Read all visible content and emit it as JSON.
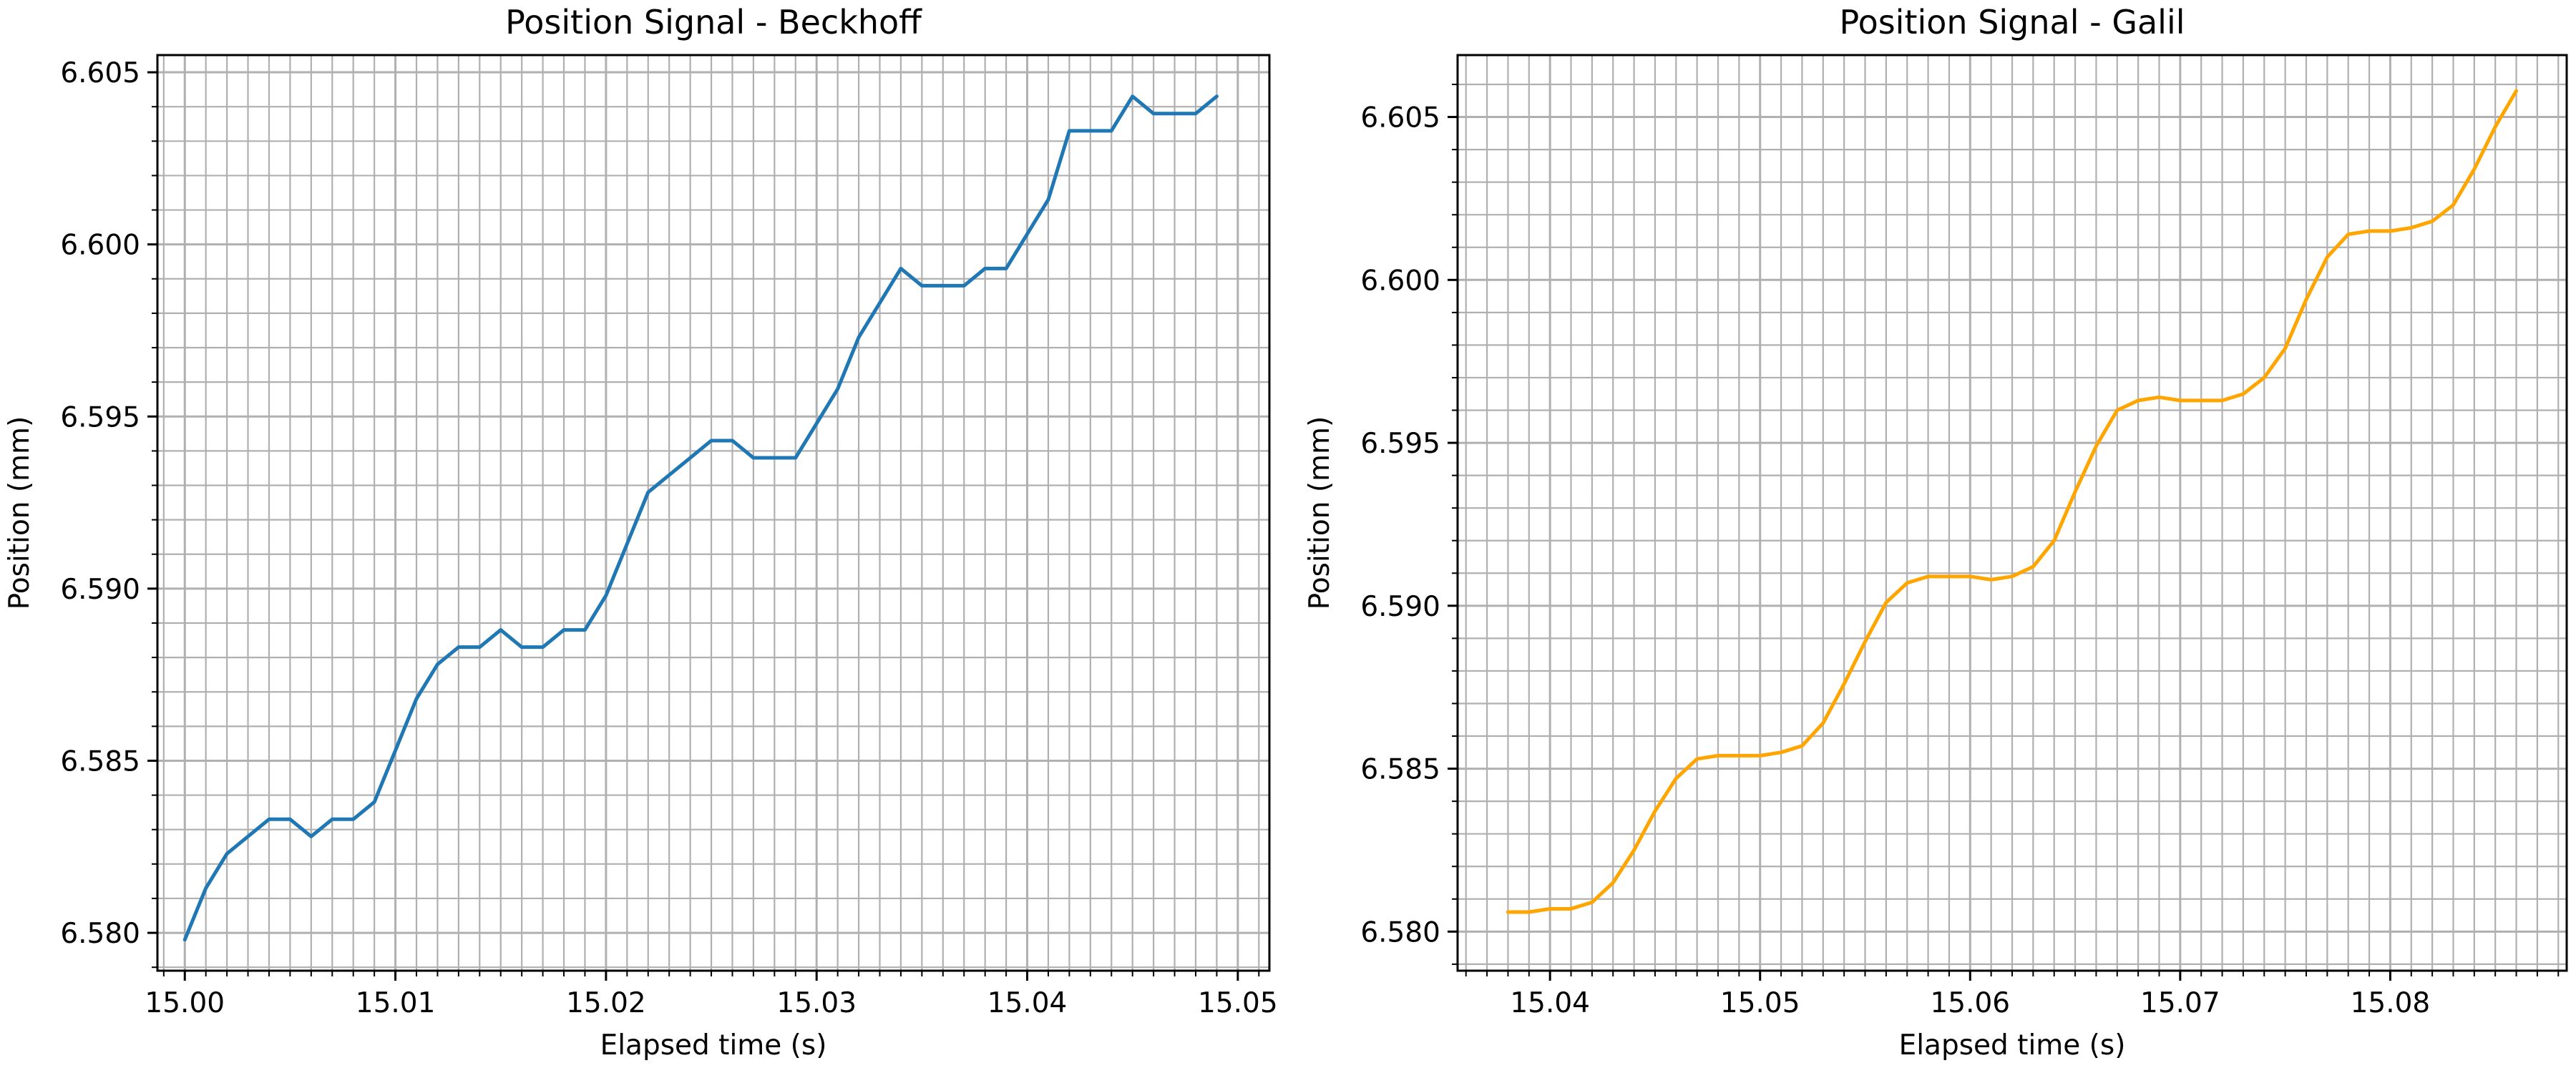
{
  "chart_data": [
    {
      "type": "line",
      "title": "Position Signal - Beckhoff",
      "xlabel": "Elapsed time (s)",
      "ylabel": "Position (mm)",
      "xlim": [
        14.9987,
        15.0515
      ],
      "ylim": [
        6.5789,
        6.6055
      ],
      "xticks": [
        "15.00",
        "15.01",
        "15.02",
        "15.03",
        "15.04",
        "15.05"
      ],
      "yticks": [
        "6.580",
        "6.585",
        "6.590",
        "6.595",
        "6.600",
        "6.605"
      ],
      "grid": true,
      "minor_grid": true,
      "color": "#1f77b4",
      "series": [
        {
          "x": [
            15.0,
            15.001,
            15.002,
            15.003,
            15.004,
            15.005,
            15.006,
            15.007,
            15.008,
            15.009,
            15.01,
            15.011,
            15.012,
            15.013,
            15.014,
            15.015,
            15.016,
            15.017,
            15.018,
            15.019,
            15.02,
            15.021,
            15.022,
            15.023,
            15.024,
            15.025,
            15.026,
            15.027,
            15.028,
            15.029,
            15.03,
            15.031,
            15.032,
            15.033,
            15.034,
            15.035,
            15.036,
            15.037,
            15.038,
            15.039,
            15.04,
            15.041,
            15.042,
            15.043,
            15.044,
            15.045,
            15.046,
            15.047,
            15.048,
            15.049
          ],
          "y": [
            6.5798,
            6.5813,
            6.5823,
            6.5828,
            6.5833,
            6.5833,
            6.5828,
            6.5833,
            6.5833,
            6.5838,
            6.5853,
            6.5868,
            6.5878,
            6.5883,
            6.5883,
            6.5888,
            6.5883,
            6.5883,
            6.5888,
            6.5888,
            6.5898,
            6.5913,
            6.5928,
            6.5933,
            6.5938,
            6.5943,
            6.5943,
            6.5938,
            6.5938,
            6.5938,
            6.5948,
            6.5958,
            6.5973,
            6.5983,
            6.5993,
            6.5988,
            6.5988,
            6.5988,
            6.5993,
            6.5993,
            6.6003,
            6.6013,
            6.6033,
            6.6033,
            6.6033,
            6.6043,
            6.6038,
            6.6038,
            6.6038,
            6.6043
          ]
        }
      ]
    },
    {
      "type": "line",
      "title": "Position Signal - Galil",
      "xlabel": "Elapsed time (s)",
      "ylabel": "Position (mm)",
      "xlim": [
        15.0356,
        15.0884
      ],
      "ylim": [
        6.5788,
        6.6069
      ],
      "xticks": [
        "15.04",
        "15.05",
        "15.06",
        "15.07",
        "15.08"
      ],
      "yticks": [
        "6.580",
        "6.585",
        "6.590",
        "6.595",
        "6.600",
        "6.605"
      ],
      "grid": true,
      "minor_grid": true,
      "color": "#ffa500",
      "series": [
        {
          "x": [
            15.038,
            15.039,
            15.04,
            15.041,
            15.042,
            15.043,
            15.044,
            15.045,
            15.046,
            15.047,
            15.048,
            15.049,
            15.05,
            15.051,
            15.052,
            15.053,
            15.054,
            15.055,
            15.056,
            15.057,
            15.058,
            15.059,
            15.06,
            15.061,
            15.062,
            15.063,
            15.064,
            15.065,
            15.066,
            15.067,
            15.068,
            15.069,
            15.07,
            15.071,
            15.072,
            15.073,
            15.074,
            15.075,
            15.076,
            15.077,
            15.078,
            15.079,
            15.08,
            15.081,
            15.082,
            15.083,
            15.084,
            15.085,
            15.086
          ],
          "y": [
            6.5806,
            6.5806,
            6.5807,
            6.5807,
            6.5809,
            6.5815,
            6.5825,
            6.5837,
            6.5847,
            6.5853,
            6.5854,
            6.5854,
            6.5854,
            6.5855,
            6.5857,
            6.5864,
            6.5876,
            6.5889,
            6.5901,
            6.5907,
            6.5909,
            6.5909,
            6.5909,
            6.5908,
            6.5909,
            6.5912,
            6.592,
            6.5935,
            6.5949,
            6.596,
            6.5963,
            6.5964,
            6.5963,
            6.5963,
            6.5963,
            6.5965,
            6.597,
            6.5979,
            6.5994,
            6.6007,
            6.6014,
            6.6015,
            6.6015,
            6.6016,
            6.6018,
            6.6023,
            6.6034,
            6.6047,
            6.6058
          ]
        }
      ]
    }
  ]
}
